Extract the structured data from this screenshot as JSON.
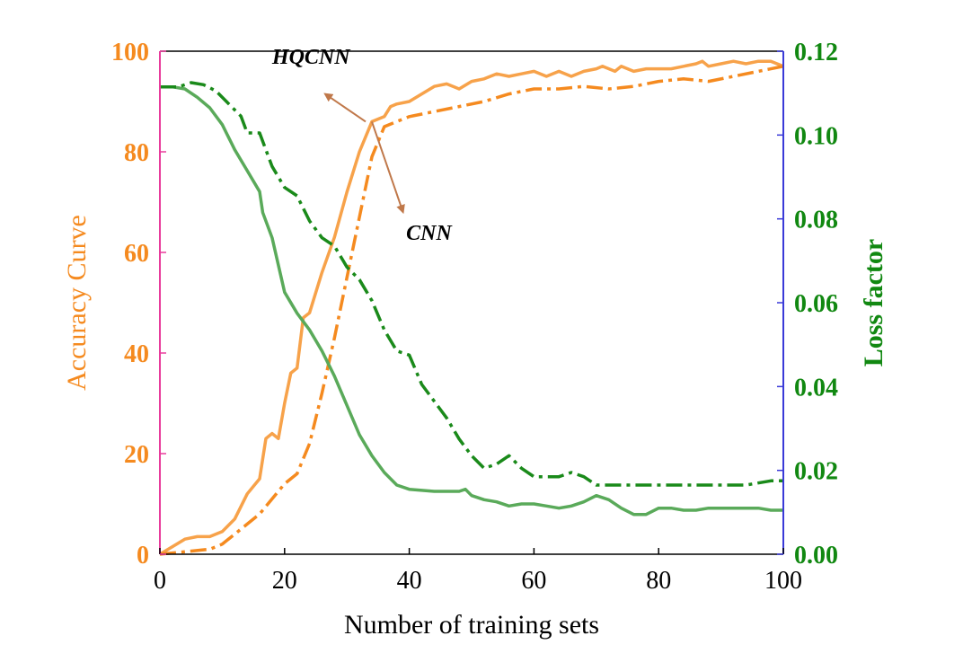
{
  "chart_data": {
    "type": "line",
    "title": "",
    "xlabel": "Number of training sets",
    "ylabel_left": "Accuracy Curve",
    "ylabel_right": "Loss factor",
    "xlim": [
      0,
      100
    ],
    "ylim_left": [
      0,
      100
    ],
    "ylim_right": [
      0,
      0.12
    ],
    "x_ticks": [
      "0",
      "20",
      "40",
      "60",
      "80",
      "100"
    ],
    "y_ticks_left": [
      "0",
      "20",
      "40",
      "60",
      "80",
      "100"
    ],
    "y_ticks_right": [
      "0.00",
      "0.02",
      "0.04",
      "0.06",
      "0.08",
      "0.10",
      "0.12"
    ],
    "grid": false,
    "colors": {
      "accuracy": "#f7a24a",
      "loss": "#5aaa5a",
      "left_axis_text": "#f58a1f",
      "right_axis_text": "#118811",
      "left_spine": "#e83c9c",
      "right_spine": "#3a3ad8",
      "arrow": "#c0784a"
    },
    "series": [
      {
        "axis": "left",
        "style": "solid",
        "points": [
          [
            0,
            0
          ],
          [
            2,
            1.5
          ],
          [
            4,
            3
          ],
          [
            6,
            3.5
          ],
          [
            8,
            3.5
          ],
          [
            10,
            4.5
          ],
          [
            12,
            7
          ],
          [
            14,
            12
          ],
          [
            16,
            15
          ],
          [
            17,
            23
          ],
          [
            18,
            24
          ],
          [
            19,
            23
          ],
          [
            20,
            30
          ],
          [
            21,
            36
          ],
          [
            22,
            37
          ],
          [
            23,
            47
          ],
          [
            24,
            48
          ],
          [
            26,
            56
          ],
          [
            28,
            63
          ],
          [
            30,
            72
          ],
          [
            32,
            80
          ],
          [
            34,
            86
          ],
          [
            36,
            87
          ],
          [
            37,
            89
          ],
          [
            38,
            89.5
          ],
          [
            40,
            90
          ],
          [
            42,
            91.5
          ],
          [
            44,
            93
          ],
          [
            46,
            93.5
          ],
          [
            48,
            92.5
          ],
          [
            50,
            94
          ],
          [
            52,
            94.5
          ],
          [
            54,
            95.5
          ],
          [
            56,
            95
          ],
          [
            58,
            95.5
          ],
          [
            60,
            96
          ],
          [
            62,
            95
          ],
          [
            64,
            96
          ],
          [
            66,
            95
          ],
          [
            68,
            96
          ],
          [
            70,
            96.5
          ],
          [
            71,
            97
          ],
          [
            73,
            96
          ],
          [
            74,
            97
          ],
          [
            76,
            96
          ],
          [
            78,
            96.5
          ],
          [
            80,
            96.5
          ],
          [
            82,
            96.5
          ],
          [
            84,
            97
          ],
          [
            86,
            97.5
          ],
          [
            87,
            98
          ],
          [
            88,
            97
          ],
          [
            90,
            97.5
          ],
          [
            92,
            98
          ],
          [
            94,
            97.5
          ],
          [
            96,
            98
          ],
          [
            98,
            98
          ],
          [
            100,
            97
          ]
        ]
      },
      {
        "axis": "left",
        "style": "dashdot",
        "points": [
          [
            0,
            0
          ],
          [
            4,
            0.5
          ],
          [
            8,
            1
          ],
          [
            10,
            2
          ],
          [
            12,
            4
          ],
          [
            14,
            6
          ],
          [
            16,
            8
          ],
          [
            18,
            11
          ],
          [
            20,
            14
          ],
          [
            22,
            16
          ],
          [
            24,
            22
          ],
          [
            26,
            32
          ],
          [
            28,
            43
          ],
          [
            30,
            55
          ],
          [
            32,
            67
          ],
          [
            34,
            79
          ],
          [
            35,
            82
          ],
          [
            36,
            85
          ],
          [
            38,
            86
          ],
          [
            40,
            87
          ],
          [
            44,
            88
          ],
          [
            48,
            89
          ],
          [
            52,
            90
          ],
          [
            56,
            91.5
          ],
          [
            60,
            92.5
          ],
          [
            64,
            92.5
          ],
          [
            68,
            93
          ],
          [
            72,
            92.5
          ],
          [
            76,
            93
          ],
          [
            80,
            94
          ],
          [
            84,
            94.5
          ],
          [
            88,
            94
          ],
          [
            92,
            95
          ],
          [
            96,
            96
          ],
          [
            100,
            97
          ]
        ]
      },
      {
        "axis": "right",
        "style": "solid",
        "points": [
          [
            0,
            0.1115
          ],
          [
            2,
            0.1115
          ],
          [
            4,
            0.111
          ],
          [
            6,
            0.109
          ],
          [
            8,
            0.1065
          ],
          [
            10,
            0.1025
          ],
          [
            12,
            0.0965
          ],
          [
            14,
            0.0915
          ],
          [
            16,
            0.0865
          ],
          [
            16.5,
            0.0815
          ],
          [
            18,
            0.0755
          ],
          [
            20,
            0.0625
          ],
          [
            22,
            0.0575
          ],
          [
            24,
            0.0535
          ],
          [
            26,
            0.0485
          ],
          [
            28,
            0.0425
          ],
          [
            30,
            0.0355
          ],
          [
            32,
            0.0285
          ],
          [
            34,
            0.0235
          ],
          [
            36,
            0.0195
          ],
          [
            38,
            0.0165
          ],
          [
            40,
            0.0155
          ],
          [
            44,
            0.015
          ],
          [
            48,
            0.015
          ],
          [
            49,
            0.0155
          ],
          [
            50,
            0.014
          ],
          [
            52,
            0.013
          ],
          [
            54,
            0.0125
          ],
          [
            56,
            0.0115
          ],
          [
            58,
            0.012
          ],
          [
            60,
            0.012
          ],
          [
            62,
            0.0115
          ],
          [
            64,
            0.011
          ],
          [
            66,
            0.0115
          ],
          [
            68,
            0.0125
          ],
          [
            70,
            0.014
          ],
          [
            72,
            0.013
          ],
          [
            74,
            0.011
          ],
          [
            76,
            0.0095
          ],
          [
            78,
            0.0095
          ],
          [
            80,
            0.011
          ],
          [
            82,
            0.011
          ],
          [
            84,
            0.0105
          ],
          [
            86,
            0.0105
          ],
          [
            88,
            0.011
          ],
          [
            90,
            0.011
          ],
          [
            92,
            0.011
          ],
          [
            94,
            0.011
          ],
          [
            96,
            0.011
          ],
          [
            98,
            0.0105
          ],
          [
            100,
            0.0105
          ]
        ]
      },
      {
        "axis": "right",
        "style": "dashdot",
        "points": [
          [
            0,
            0.1115
          ],
          [
            3,
            0.1115
          ],
          [
            5,
            0.1125
          ],
          [
            7,
            0.112
          ],
          [
            9,
            0.1105
          ],
          [
            11,
            0.1075
          ],
          [
            13,
            0.1045
          ],
          [
            14,
            0.1005
          ],
          [
            16,
            0.1005
          ],
          [
            18,
            0.0925
          ],
          [
            20,
            0.0875
          ],
          [
            22,
            0.0855
          ],
          [
            24,
            0.0795
          ],
          [
            26,
            0.0755
          ],
          [
            28,
            0.0735
          ],
          [
            30,
            0.0685
          ],
          [
            32,
            0.0655
          ],
          [
            34,
            0.0605
          ],
          [
            36,
            0.0535
          ],
          [
            38,
            0.0485
          ],
          [
            40,
            0.0475
          ],
          [
            42,
            0.0405
          ],
          [
            44,
            0.0365
          ],
          [
            46,
            0.0325
          ],
          [
            48,
            0.0275
          ],
          [
            50,
            0.0235
          ],
          [
            52,
            0.0205
          ],
          [
            54,
            0.0215
          ],
          [
            56,
            0.0235
          ],
          [
            58,
            0.0205
          ],
          [
            60,
            0.0185
          ],
          [
            62,
            0.0185
          ],
          [
            64,
            0.0185
          ],
          [
            66,
            0.0195
          ],
          [
            68,
            0.0185
          ],
          [
            70,
            0.0165
          ],
          [
            74,
            0.0165
          ],
          [
            78,
            0.0165
          ],
          [
            82,
            0.0165
          ],
          [
            86,
            0.0165
          ],
          [
            90,
            0.0165
          ],
          [
            94,
            0.0165
          ],
          [
            98,
            0.0175
          ],
          [
            100,
            0.0175
          ]
        ]
      }
    ],
    "annotations": [
      {
        "text": "HQCNN",
        "text_at": [
          18,
          97.5
        ],
        "arrow_from": [
          33,
          86
        ],
        "arrow_to": [
          26.5,
          91.5
        ]
      },
      {
        "text": "CNN",
        "text_at": [
          39.5,
          62.5
        ],
        "arrow_from": [
          34,
          86
        ],
        "arrow_to": [
          39,
          68
        ]
      }
    ]
  }
}
